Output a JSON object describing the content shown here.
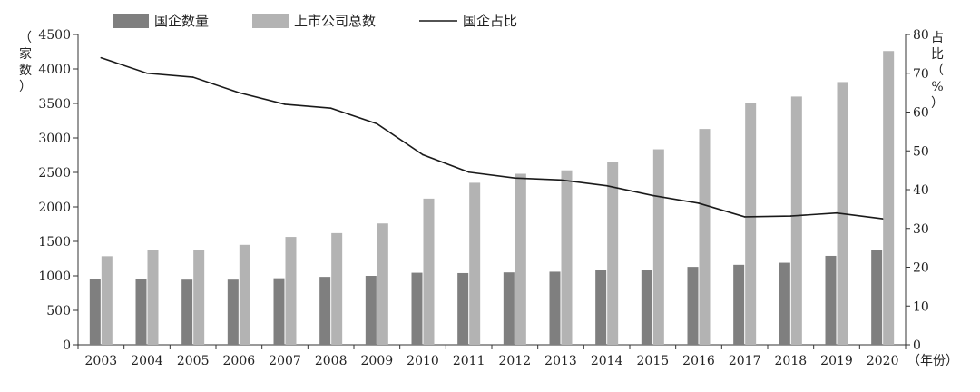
{
  "chart_data": {
    "type": "bar",
    "categories": [
      "2003",
      "2004",
      "2005",
      "2006",
      "2007",
      "2008",
      "2009",
      "2010",
      "2011",
      "2012",
      "2013",
      "2014",
      "2015",
      "2016",
      "2017",
      "2018",
      "2019",
      "2020"
    ],
    "series": [
      {
        "name": "国企数量",
        "kind": "bar",
        "axis": "left",
        "values": [
          950,
          960,
          945,
          945,
          965,
          985,
          1000,
          1045,
          1040,
          1050,
          1060,
          1080,
          1090,
          1130,
          1160,
          1190,
          1290,
          1380
        ]
      },
      {
        "name": "上市公司总数",
        "kind": "bar",
        "axis": "left",
        "values": [
          1285,
          1375,
          1370,
          1450,
          1565,
          1620,
          1760,
          2120,
          2350,
          2480,
          2530,
          2650,
          2835,
          3130,
          3505,
          3600,
          3810,
          4260
        ]
      },
      {
        "name": "国企占比",
        "kind": "line",
        "axis": "right",
        "values": [
          74,
          70,
          69,
          65,
          62,
          61,
          57,
          49,
          44.5,
          43,
          42.5,
          41,
          38.5,
          36.5,
          33,
          33.2,
          34,
          32.5
        ]
      }
    ],
    "ylabel": "（家数）",
    "y2label": "占比（%）",
    "xunit": "（年份）",
    "ylim": [
      0,
      4500
    ],
    "y2lim": [
      0,
      80
    ],
    "yticks": [
      0,
      500,
      1000,
      1500,
      2000,
      2500,
      3000,
      3500,
      4000,
      4500
    ],
    "y2ticks": [
      0,
      10,
      20,
      30,
      40,
      50,
      60,
      70,
      80
    ],
    "colors": {
      "soe": "#7f7f7f",
      "total": "#b3b3b3",
      "line": "#1a1a1a",
      "axis": "#333333"
    },
    "legend_placement": "top-left",
    "grid": false
  }
}
